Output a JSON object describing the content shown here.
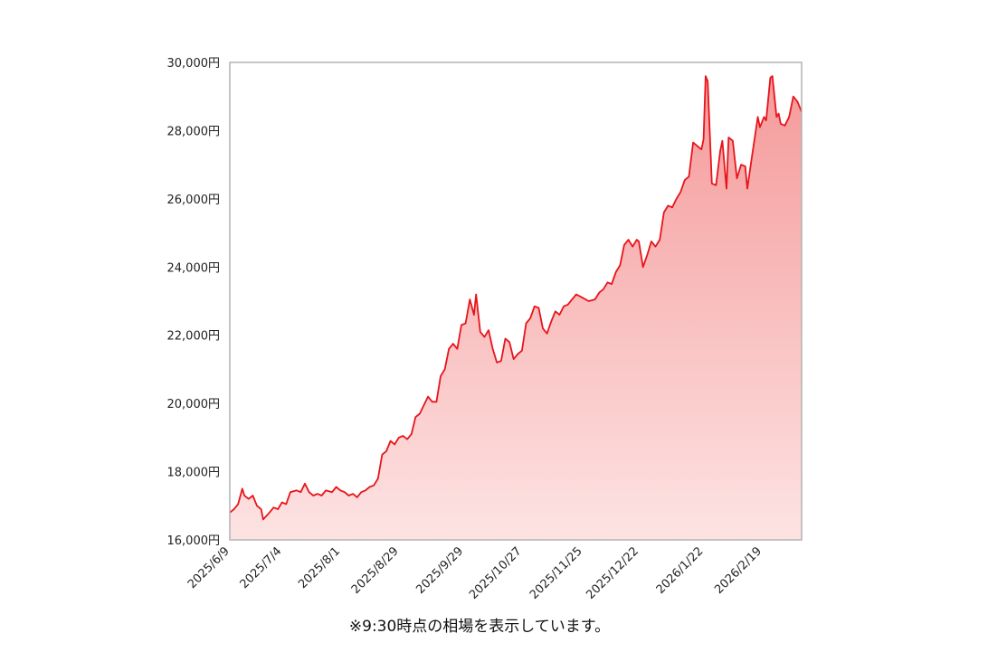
{
  "note": "※9:30時点の相場を表示しています。",
  "colors": {
    "line": "#e8141b",
    "fill_top": "#f59a9a",
    "fill_bottom": "#fde3e3",
    "frame": "#b3b3b3"
  },
  "chart_data": {
    "type": "area",
    "title": "",
    "xlabel": "",
    "ylabel": "",
    "ylim": [
      16000,
      30000
    ],
    "y_ticks": [
      16000,
      18000,
      20000,
      22000,
      24000,
      26000,
      28000,
      30000
    ],
    "y_tick_labels": [
      "16,000円",
      "18,000円",
      "20,000円",
      "22,000円",
      "24,000円",
      "26,000円",
      "28,000円",
      "30,000円"
    ],
    "x_start": "2025/6/9",
    "x_end": "2026/3/10",
    "x_tick_labels": [
      "2025/6/9",
      "2025/7/4",
      "2025/8/1",
      "2025/8/29",
      "2025/9/29",
      "2025/10/27",
      "2025/11/25",
      "2025/12/22",
      "2026/1/22",
      "2026/2/19"
    ],
    "series": [
      {
        "values": [
          [
            "2025/6/9",
            16800
          ],
          [
            "2025/6/11",
            16900
          ],
          [
            "2025/6/13",
            17050
          ],
          [
            "2025/6/15",
            17500
          ],
          [
            "2025/6/16",
            17300
          ],
          [
            "2025/6/18",
            17200
          ],
          [
            "2025/6/20",
            17300
          ],
          [
            "2025/6/22",
            17000
          ],
          [
            "2025/6/24",
            16900
          ],
          [
            "2025/6/25",
            16600
          ],
          [
            "2025/6/28",
            16800
          ],
          [
            "2025/6/30",
            16950
          ],
          [
            "2025/7/2",
            16900
          ],
          [
            "2025/7/4",
            17100
          ],
          [
            "2025/7/6",
            17050
          ],
          [
            "2025/7/8",
            17400
          ],
          [
            "2025/7/11",
            17450
          ],
          [
            "2025/7/13",
            17400
          ],
          [
            "2025/7/15",
            17650
          ],
          [
            "2025/7/17",
            17400
          ],
          [
            "2025/7/19",
            17300
          ],
          [
            "2025/7/21",
            17350
          ],
          [
            "2025/7/23",
            17300
          ],
          [
            "2025/7/25",
            17450
          ],
          [
            "2025/7/28",
            17400
          ],
          [
            "2025/7/30",
            17550
          ],
          [
            "2025/8/1",
            17450
          ],
          [
            "2025/8/3",
            17400
          ],
          [
            "2025/8/5",
            17300
          ],
          [
            "2025/8/7",
            17350
          ],
          [
            "2025/8/9",
            17250
          ],
          [
            "2025/8/11",
            17400
          ],
          [
            "2025/8/13",
            17450
          ],
          [
            "2025/8/15",
            17550
          ],
          [
            "2025/8/17",
            17600
          ],
          [
            "2025/8/19",
            17800
          ],
          [
            "2025/8/21",
            18500
          ],
          [
            "2025/8/23",
            18600
          ],
          [
            "2025/8/25",
            18900
          ],
          [
            "2025/8/27",
            18800
          ],
          [
            "2025/8/29",
            19000
          ],
          [
            "2025/8/31",
            19050
          ],
          [
            "2025/9/2",
            18950
          ],
          [
            "2025/9/4",
            19100
          ],
          [
            "2025/9/6",
            19600
          ],
          [
            "2025/9/8",
            19700
          ],
          [
            "2025/9/10",
            19950
          ],
          [
            "2025/9/12",
            20200
          ],
          [
            "2025/9/14",
            20050
          ],
          [
            "2025/9/16",
            20050
          ],
          [
            "2025/9/18",
            20800
          ],
          [
            "2025/9/20",
            21000
          ],
          [
            "2025/9/22",
            21600
          ],
          [
            "2025/9/24",
            21750
          ],
          [
            "2025/9/26",
            21600
          ],
          [
            "2025/9/28",
            22300
          ],
          [
            "2025/9/30",
            22350
          ],
          [
            "2025/10/2",
            23050
          ],
          [
            "2025/10/4",
            22600
          ],
          [
            "2025/10/5",
            23200
          ],
          [
            "2025/10/7",
            22100
          ],
          [
            "2025/10/9",
            21950
          ],
          [
            "2025/10/11",
            22150
          ],
          [
            "2025/10/13",
            21600
          ],
          [
            "2025/10/15",
            21200
          ],
          [
            "2025/10/17",
            21250
          ],
          [
            "2025/10/19",
            21900
          ],
          [
            "2025/10/21",
            21800
          ],
          [
            "2025/10/23",
            21300
          ],
          [
            "2025/10/25",
            21450
          ],
          [
            "2025/10/27",
            21550
          ],
          [
            "2025/10/29",
            22350
          ],
          [
            "2025/10/31",
            22500
          ],
          [
            "2025/11/2",
            22850
          ],
          [
            "2025/11/4",
            22800
          ],
          [
            "2025/11/6",
            22200
          ],
          [
            "2025/11/8",
            22050
          ],
          [
            "2025/11/10",
            22400
          ],
          [
            "2025/11/12",
            22700
          ],
          [
            "2025/11/14",
            22600
          ],
          [
            "2025/11/16",
            22850
          ],
          [
            "2025/11/18",
            22900
          ],
          [
            "2025/11/20",
            23050
          ],
          [
            "2025/11/22",
            23200
          ],
          [
            "2025/11/25",
            23100
          ],
          [
            "2025/11/28",
            23000
          ],
          [
            "2025/12/1",
            23050
          ],
          [
            "2025/12/3",
            23250
          ],
          [
            "2025/12/5",
            23350
          ],
          [
            "2025/12/7",
            23550
          ],
          [
            "2025/12/9",
            23500
          ],
          [
            "2025/12/11",
            23850
          ],
          [
            "2025/12/13",
            24050
          ],
          [
            "2025/12/15",
            24650
          ],
          [
            "2025/12/17",
            24800
          ],
          [
            "2025/12/19",
            24600
          ],
          [
            "2025/12/21",
            24800
          ],
          [
            "2025/12/22",
            24750
          ],
          [
            "2025/12/24",
            24000
          ],
          [
            "2025/12/26",
            24350
          ],
          [
            "2025/12/28",
            24750
          ],
          [
            "2025/12/30",
            24600
          ],
          [
            "2026/1/1",
            24800
          ],
          [
            "2026/1/3",
            25600
          ],
          [
            "2026/1/5",
            25800
          ],
          [
            "2026/1/7",
            25750
          ],
          [
            "2026/1/9",
            26000
          ],
          [
            "2026/1/11",
            26200
          ],
          [
            "2026/1/13",
            26550
          ],
          [
            "2026/1/15",
            26650
          ],
          [
            "2026/1/17",
            27650
          ],
          [
            "2026/1/19",
            27550
          ],
          [
            "2026/1/21",
            27450
          ],
          [
            "2026/1/22",
            27750
          ],
          [
            "2026/1/23",
            29600
          ],
          [
            "2026/1/24",
            29450
          ],
          [
            "2026/1/26",
            26450
          ],
          [
            "2026/1/28",
            26400
          ],
          [
            "2026/1/30",
            27400
          ],
          [
            "2026/1/31",
            27700
          ],
          [
            "2026/2/2",
            26300
          ],
          [
            "2026/2/3",
            27800
          ],
          [
            "2026/2/5",
            27700
          ],
          [
            "2026/2/7",
            26600
          ],
          [
            "2026/2/9",
            27000
          ],
          [
            "2026/2/11",
            26950
          ],
          [
            "2026/2/12",
            26300
          ],
          [
            "2026/2/14",
            27150
          ],
          [
            "2026/2/17",
            28400
          ],
          [
            "2026/2/18",
            28100
          ],
          [
            "2026/2/20",
            28400
          ],
          [
            "2026/2/21",
            28300
          ],
          [
            "2026/2/23",
            29550
          ],
          [
            "2026/2/24",
            29600
          ],
          [
            "2026/2/26",
            28400
          ],
          [
            "2026/2/27",
            28500
          ],
          [
            "2026/2/28",
            28200
          ],
          [
            "2026/3/2",
            28150
          ],
          [
            "2026/3/4",
            28400
          ],
          [
            "2026/3/6",
            29000
          ],
          [
            "2026/3/8",
            28850
          ],
          [
            "2026/3/10",
            28550
          ]
        ]
      }
    ]
  }
}
